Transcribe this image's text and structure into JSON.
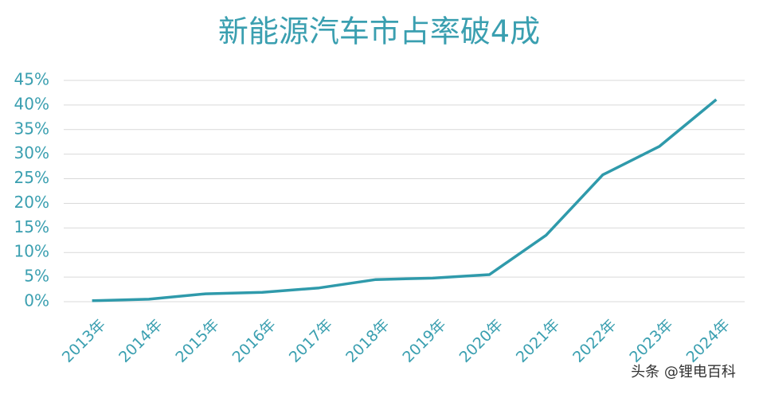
{
  "chart_data": {
    "type": "line",
    "title": "新能源汽车市占率破4成",
    "categories": [
      "2013年",
      "2014年",
      "2015年",
      "2016年",
      "2017年",
      "2018年",
      "2019年",
      "2020年",
      "2021年",
      "2022年",
      "2023年",
      "2024年"
    ],
    "values": [
      0.2,
      0.5,
      1.6,
      1.9,
      2.8,
      4.5,
      4.8,
      5.5,
      13.5,
      25.8,
      31.6,
      41.1
    ],
    "color": "#2f9aab",
    "ylim": [
      0,
      45
    ],
    "yticks": [
      {
        "value": 0,
        "label": "0%"
      },
      {
        "value": 5,
        "label": "5%"
      },
      {
        "value": 10,
        "label": "10%"
      },
      {
        "value": 15,
        "label": "15%"
      },
      {
        "value": 20,
        "label": "20%"
      },
      {
        "value": 25,
        "label": "25%"
      },
      {
        "value": 30,
        "label": "30%"
      },
      {
        "value": 35,
        "label": "35%"
      },
      {
        "value": 40,
        "label": "40%"
      },
      {
        "value": 45,
        "label": "45%"
      }
    ],
    "grid": true,
    "watermark": "头条 @锂电百科"
  }
}
